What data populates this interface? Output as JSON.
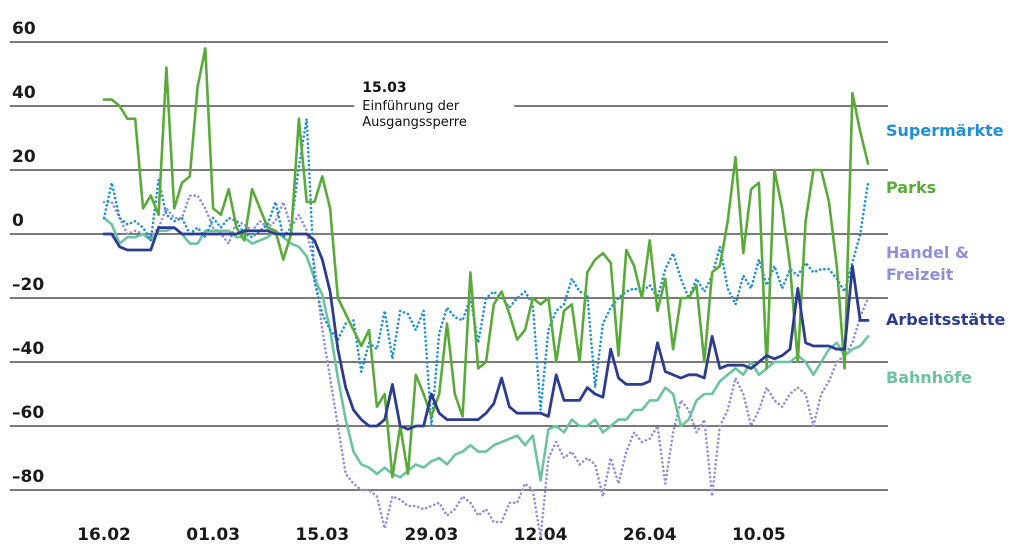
{
  "chart_data": {
    "type": "line",
    "title": "",
    "xlabel": "",
    "ylabel": "",
    "ylim": [
      -80,
      60
    ],
    "xlim_days": [
      0,
      98
    ],
    "y_ticks": [
      60,
      40,
      20,
      0,
      -20,
      -40,
      -60,
      -80
    ],
    "y_tick_labels": [
      "60",
      "40",
      "20",
      "0",
      "–20",
      "–40",
      "–60",
      "–80"
    ],
    "x_ticks": [
      {
        "day": 0,
        "label": "16.02"
      },
      {
        "day": 14,
        "label": "01.03"
      },
      {
        "day": 28,
        "label": "15.03"
      },
      {
        "day": 42,
        "label": "29.03"
      },
      {
        "day": 56,
        "label": "12.04"
      },
      {
        "day": 70,
        "label": "26.04"
      },
      {
        "day": 84,
        "label": "10.05"
      }
    ],
    "grid": true,
    "annotation": {
      "day": 28,
      "date": "15.03",
      "lines": [
        "Einführung der",
        "Ausgangssperre"
      ]
    },
    "series": [
      {
        "name": "Supermärkte",
        "color": "#1f8fd6",
        "style": "dotted",
        "label_lines": [
          "Supermärkte"
        ],
        "values": [
          5,
          16,
          5,
          3,
          4,
          2,
          -2,
          17,
          6,
          4,
          5,
          0,
          2,
          -1,
          5,
          2,
          5,
          4,
          0,
          -1,
          1,
          3,
          10,
          -1,
          2,
          21,
          36,
          -15,
          -25,
          -30,
          -33,
          -28,
          -27,
          -43,
          -34,
          -36,
          -24,
          -39,
          -24,
          -25,
          -30,
          -24,
          -60,
          -31,
          -23,
          -26,
          -27,
          -20,
          -34,
          -20,
          -18,
          -20,
          -23,
          -20,
          -18,
          -22,
          -55,
          -30,
          -24,
          -22,
          -14,
          -18,
          -19,
          -48,
          -28,
          -23,
          -20,
          -18,
          -17,
          -18,
          -16,
          -20,
          -11,
          -6,
          -14,
          -20,
          -14,
          -18,
          -13,
          -4,
          -17,
          -22,
          -13,
          -17,
          -8,
          -16,
          -10,
          -17,
          -11,
          -13,
          -9,
          -12,
          -11,
          -11,
          -14,
          -18,
          -9,
          0,
          16
        ]
      },
      {
        "name": "Parks",
        "color": "#5aaa3a",
        "style": "solid",
        "label_lines": [
          "Parks"
        ],
        "values": [
          42,
          42,
          40,
          36,
          36,
          8,
          12,
          6,
          52,
          8,
          16,
          18,
          46,
          58,
          8,
          6,
          14,
          2,
          -2,
          14,
          8,
          2,
          1,
          -8,
          0,
          36,
          10,
          10,
          18,
          8,
          -20,
          -25,
          -30,
          -35,
          -30,
          -54,
          -50,
          -76,
          -60,
          -75,
          -44,
          -50,
          -57,
          -50,
          -28,
          -50,
          -57,
          -12,
          -42,
          -40,
          -22,
          -18,
          -25,
          -33,
          -30,
          -20,
          -22,
          -20,
          -40,
          -24,
          -22,
          -40,
          -12,
          -8,
          -6,
          -9,
          -38,
          -5,
          -10,
          -20,
          -2,
          -24,
          -14,
          -36,
          -20,
          -20,
          -16,
          -40,
          -12,
          -10,
          4,
          24,
          -6,
          14,
          16,
          -42,
          20,
          8,
          -10,
          -40,
          4,
          20,
          20,
          10,
          -10,
          -42,
          44,
          32,
          22
        ]
      },
      {
        "name": "Handel & Freizeit",
        "color": "#9090d8",
        "style": "dotted",
        "label_lines": [
          "Handel &",
          "Freizeit"
        ],
        "values": [
          10,
          10,
          5,
          0,
          1,
          0,
          -1,
          2,
          8,
          5,
          5,
          12,
          12,
          8,
          2,
          0,
          -3,
          4,
          3,
          1,
          4,
          2,
          4,
          10,
          2,
          6,
          1,
          -10,
          -30,
          -45,
          -60,
          -75,
          -78,
          -80,
          -80,
          -82,
          -92,
          -82,
          -83,
          -85,
          -85,
          -86,
          -85,
          -84,
          -88,
          -86,
          -82,
          -84,
          -88,
          -86,
          -90,
          -90,
          -84,
          -84,
          -78,
          -80,
          -95,
          -70,
          -65,
          -70,
          -68,
          -72,
          -70,
          -72,
          -82,
          -70,
          -78,
          -68,
          -62,
          -65,
          -64,
          -60,
          -78,
          -62,
          -52,
          -55,
          -62,
          -58,
          -82,
          -60,
          -55,
          -45,
          -50,
          -60,
          -55,
          -48,
          -52,
          -54,
          -50,
          -48,
          -50,
          -60,
          -50,
          -46,
          -40,
          -38,
          -34,
          -26,
          -20
        ]
      },
      {
        "name": "Arbeitsstätte",
        "color": "#2d3c8e",
        "style": "solid",
        "label_lines": [
          "Arbeitsstätte"
        ],
        "values": [
          0,
          0,
          -4,
          -5,
          -5,
          -5,
          -5,
          2,
          2,
          2,
          0,
          0,
          0,
          0,
          0,
          0,
          0,
          0,
          1,
          1,
          1,
          1,
          0,
          0,
          0,
          0,
          0,
          -2,
          -8,
          -18,
          -36,
          -48,
          -55,
          -58,
          -60,
          -60,
          -58,
          -47,
          -60,
          -61,
          -60,
          -60,
          -50,
          -56,
          -58,
          -58,
          -58,
          -58,
          -58,
          -56,
          -53,
          -45,
          -54,
          -56,
          -56,
          -56,
          -56,
          -57,
          -44,
          -52,
          -52,
          -52,
          -48,
          -50,
          -51,
          -36,
          -45,
          -47,
          -47,
          -47,
          -46,
          -34,
          -43,
          -44,
          -45,
          -44,
          -44,
          -45,
          -32,
          -42,
          -41,
          -41,
          -41,
          -42,
          -40,
          -38,
          -39,
          -38,
          -36,
          -17,
          -34,
          -35,
          -35,
          -35,
          -36,
          -36,
          -10,
          -27,
          -27
        ]
      },
      {
        "name": "Bahnhöfe",
        "color": "#6cc3a0",
        "style": "solid",
        "label_lines": [
          "Bahnhöfe"
        ],
        "values": [
          5,
          3,
          -3,
          -1,
          -1,
          0,
          -2,
          1,
          1,
          2,
          0,
          -3,
          -3,
          1,
          1,
          1,
          1,
          -1,
          -1,
          -3,
          -2,
          -1,
          1,
          -1,
          -3,
          -4,
          -7,
          -14,
          -19,
          -30,
          -45,
          -58,
          -68,
          -72,
          -73,
          -75,
          -73,
          -75,
          -76,
          -74,
          -72,
          -73,
          -71,
          -70,
          -72,
          -69,
          -68,
          -66,
          -68,
          -68,
          -66,
          -65,
          -64,
          -63,
          -66,
          -63,
          -77,
          -61,
          -60,
          -62,
          -58,
          -60,
          -60,
          -58,
          -62,
          -60,
          -58,
          -58,
          -55,
          -55,
          -52,
          -52,
          -48,
          -50,
          -60,
          -58,
          -52,
          -50,
          -50,
          -46,
          -44,
          -42,
          -44,
          -40,
          -44,
          -42,
          -40,
          -40,
          -40,
          -38,
          -40,
          -44,
          -40,
          -36,
          -34,
          -38,
          -36,
          -35,
          -32
        ]
      }
    ]
  }
}
